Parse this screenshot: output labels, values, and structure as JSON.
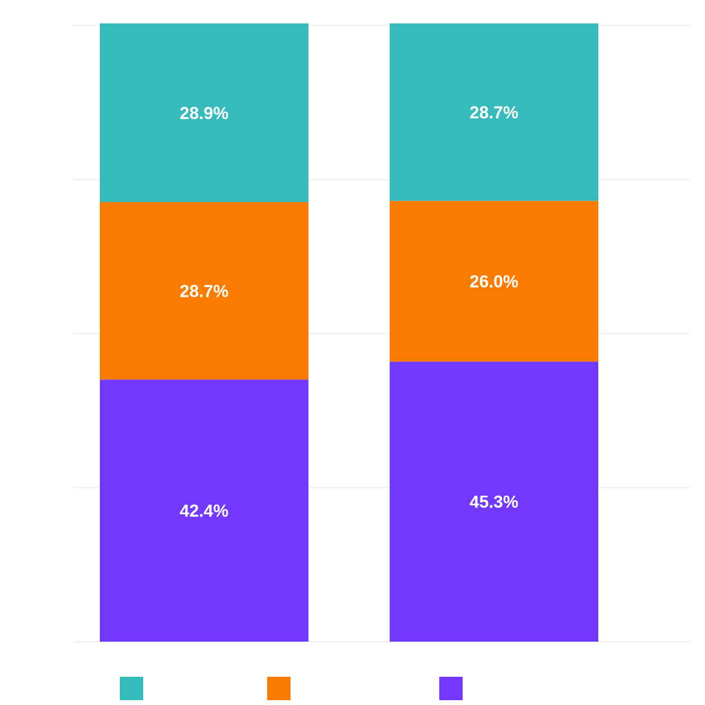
{
  "chart_data": {
    "type": "bar",
    "stacked": true,
    "normalized": true,
    "title": "",
    "xlabel": "",
    "ylabel": "",
    "ylim": [
      0,
      100
    ],
    "grid": true,
    "legend_position": "bottom",
    "categories": [
      "",
      ""
    ],
    "series": [
      {
        "name": "",
        "color": "#7239FC",
        "values": [
          42.4,
          45.3
        ],
        "labels": [
          "42.4%",
          "45.3%"
        ]
      },
      {
        "name": "",
        "color": "#F97C00",
        "values": [
          28.7,
          26.0
        ],
        "labels": [
          "28.7%",
          "26.0%"
        ]
      },
      {
        "name": "",
        "color": "#35BBBB",
        "values": [
          28.9,
          28.7
        ],
        "labels": [
          "28.9%",
          "28.7%"
        ]
      }
    ],
    "legend_order": [
      2,
      1,
      0
    ]
  }
}
